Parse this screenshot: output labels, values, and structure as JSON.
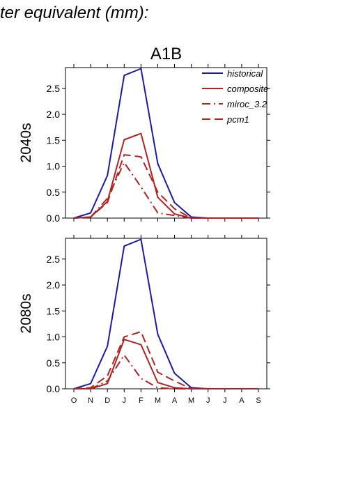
{
  "page": {
    "title": "ter equivalent (mm):"
  },
  "colors": {
    "historical": "#1a1aa8",
    "scenario": "#b22222",
    "axis": "#000000"
  },
  "chart_data": [
    {
      "type": "line",
      "scenario_title": "A1B",
      "title": "",
      "xlabel": "",
      "ylabel": "2040s",
      "categories": [
        "O",
        "N",
        "D",
        "J",
        "F",
        "M",
        "A",
        "M",
        "J",
        "J",
        "A",
        "S"
      ],
      "ylim": [
        0,
        2.9
      ],
      "yticks": [
        "0.0",
        "0.5",
        "1.0",
        "1.5",
        "2.0",
        "2.5"
      ],
      "grid": false,
      "legend_position": "top-right",
      "series": [
        {
          "name": "historical",
          "style": "solid",
          "color": "#1a1aa8",
          "values": [
            0.0,
            0.1,
            0.82,
            2.75,
            2.88,
            1.05,
            0.3,
            0.02,
            0.0,
            0.0,
            0.0,
            0.0
          ]
        },
        {
          "name": "composite",
          "style": "solid",
          "color": "#b22222",
          "values": [
            0.0,
            0.02,
            0.32,
            1.51,
            1.63,
            0.4,
            0.08,
            0.0,
            0.0,
            0.0,
            0.0,
            0.0
          ]
        },
        {
          "name": "miroc_3.2",
          "style": "dashdot",
          "color": "#b22222",
          "values": [
            0.0,
            0.02,
            0.38,
            1.07,
            0.6,
            0.1,
            0.05,
            0.0,
            0.0,
            0.0,
            0.0,
            0.0
          ]
        },
        {
          "name": "pcm1",
          "style": "dashed",
          "color": "#b22222",
          "values": [
            0.0,
            0.02,
            0.3,
            1.22,
            1.18,
            0.5,
            0.18,
            0.0,
            0.0,
            0.0,
            0.0,
            0.0
          ]
        }
      ]
    },
    {
      "type": "line",
      "title": "",
      "xlabel": "",
      "ylabel": "2080s",
      "categories": [
        "O",
        "N",
        "D",
        "J",
        "F",
        "M",
        "A",
        "M",
        "J",
        "J",
        "A",
        "S"
      ],
      "ylim": [
        0,
        2.9
      ],
      "yticks": [
        "0.0",
        "0.5",
        "1.0",
        "1.5",
        "2.0",
        "2.5"
      ],
      "grid": false,
      "series": [
        {
          "name": "historical",
          "style": "solid",
          "color": "#1a1aa8",
          "values": [
            0.0,
            0.1,
            0.82,
            2.75,
            2.88,
            1.05,
            0.3,
            0.02,
            0.0,
            0.0,
            0.0,
            0.0
          ]
        },
        {
          "name": "composite",
          "style": "solid",
          "color": "#b22222",
          "values": [
            0.0,
            0.0,
            0.1,
            0.95,
            0.85,
            0.12,
            0.02,
            0.0,
            0.0,
            0.0,
            0.0,
            0.0
          ]
        },
        {
          "name": "miroc_3.2",
          "style": "dashdot",
          "color": "#b22222",
          "values": [
            0.0,
            0.0,
            0.15,
            0.65,
            0.2,
            0.02,
            0.0,
            0.0,
            0.0,
            0.0,
            0.0,
            0.0
          ]
        },
        {
          "name": "pcm1",
          "style": "dashed",
          "color": "#b22222",
          "values": [
            0.0,
            0.02,
            0.25,
            1.0,
            1.1,
            0.32,
            0.15,
            0.0,
            0.0,
            0.0,
            0.0,
            0.0
          ]
        }
      ]
    }
  ]
}
